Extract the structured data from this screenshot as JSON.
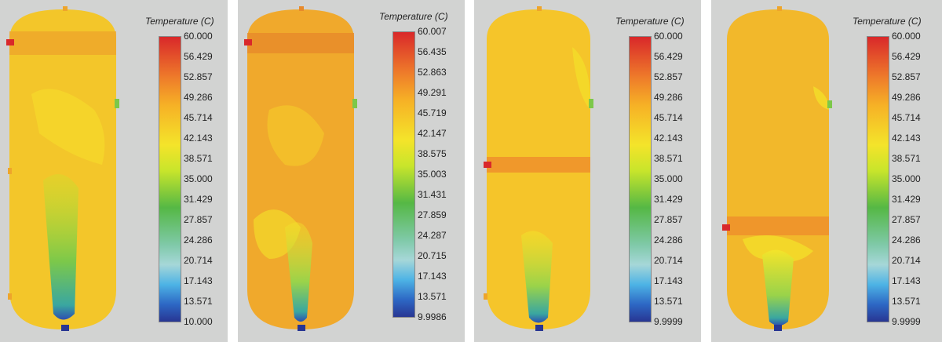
{
  "panels": [
    {
      "legend_title": "Temperature (C)",
      "ticks": [
        "60.000",
        "56.429",
        "52.857",
        "49.286",
        "45.714",
        "42.143",
        "38.571",
        "35.000",
        "31.429",
        "27.857",
        "24.286",
        "20.714",
        "17.143",
        "13.571",
        "10.000"
      ]
    },
    {
      "legend_title": "Temperature (C)",
      "ticks": [
        "60.007",
        "56.435",
        "52.863",
        "49.291",
        "45.719",
        "42.147",
        "38.575",
        "35.003",
        "31.431",
        "27.859",
        "24.287",
        "20.715",
        "17.143",
        "13.571",
        "9.9986"
      ]
    },
    {
      "legend_title": "Temperature (C)",
      "ticks": [
        "60.000",
        "56.429",
        "52.857",
        "49.286",
        "45.714",
        "42.143",
        "38.571",
        "35.000",
        "31.429",
        "27.857",
        "24.286",
        "20.714",
        "17.143",
        "13.571",
        "9.9999"
      ]
    },
    {
      "legend_title": "Temperature (C)",
      "ticks": [
        "60.000",
        "56.429",
        "52.857",
        "49.286",
        "45.714",
        "42.143",
        "38.571",
        "35.000",
        "31.429",
        "27.857",
        "24.286",
        "20.714",
        "17.143",
        "13.571",
        "9.9999"
      ]
    }
  ],
  "colors": {
    "background": "#d2d3d2",
    "tank_base": "#f5c52a",
    "hot": "#d9282a",
    "cold": "#283693"
  }
}
